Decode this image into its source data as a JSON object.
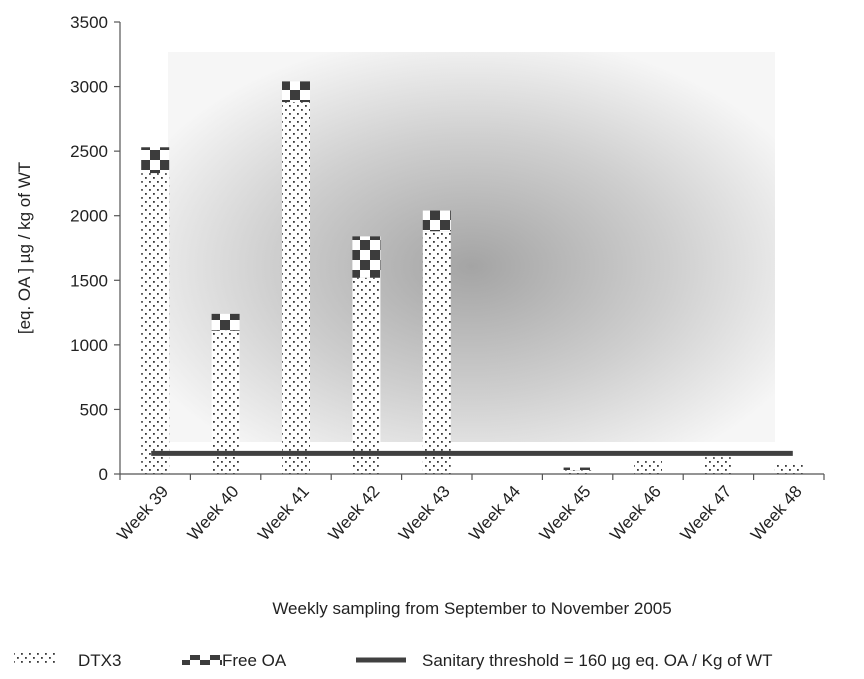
{
  "chart_data": {
    "type": "bar",
    "stacked": true,
    "title": "",
    "xlabel": "Weekly sampling from September to November 2005",
    "ylabel": "[eq. OA ] µg / kg of WT",
    "ylim": [
      0,
      3500
    ],
    "yticks": [
      0,
      500,
      1000,
      1500,
      2000,
      2500,
      3000,
      3500
    ],
    "categories": [
      "Week 39",
      "Week 40",
      "Week 41",
      "Week 42",
      "Week 43",
      "Week 44",
      "Week 45",
      "Week 46",
      "Week 47",
      "Week 48"
    ],
    "series": [
      {
        "name": "DTX3",
        "pattern": "dots",
        "values": [
          2330,
          1110,
          2880,
          1520,
          1880,
          0,
          30,
          100,
          130,
          70
        ]
      },
      {
        "name": "Free OA",
        "pattern": "checker",
        "values": [
          200,
          130,
          160,
          320,
          160,
          0,
          20,
          0,
          0,
          0
        ]
      }
    ],
    "threshold": {
      "name": "Sanitary threshold = 160 µg eq. OA / Kg of WT",
      "value": 160,
      "color": "#404040"
    },
    "legend_position": "bottom",
    "background": "gray radial gradient plot area",
    "grid": false
  }
}
